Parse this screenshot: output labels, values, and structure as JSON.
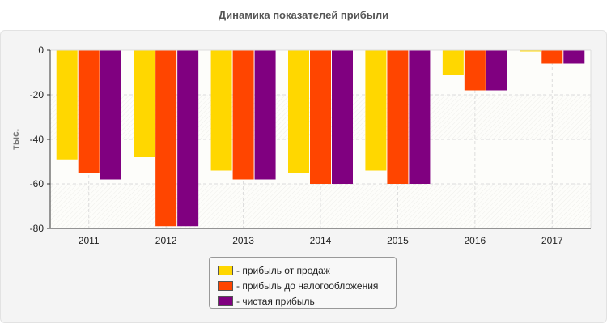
{
  "chart_data": {
    "type": "bar",
    "title": "Динамика показателей прибыли",
    "ylabel": "тыс.",
    "xlabel": "",
    "ylim": [
      -80,
      0
    ],
    "yticks": [
      0,
      -20,
      -40,
      -60,
      -80
    ],
    "grid": true,
    "legend_position": "bottom-center",
    "categories": [
      "2011",
      "2012",
      "2013",
      "2014",
      "2015",
      "2016",
      "2017"
    ],
    "series": [
      {
        "name": "- прибыль от продаж",
        "color": "#ffd700",
        "values": [
          -49,
          -48,
          -54,
          -55,
          -54,
          -11,
          -0.5
        ]
      },
      {
        "name": "- прибыль до налогообложения",
        "color": "#ff4500",
        "values": [
          -55,
          -79,
          -58,
          -60,
          -60,
          -18,
          -6
        ]
      },
      {
        "name": "- чистая прибыль",
        "color": "#800080",
        "values": [
          -58,
          -79,
          -58,
          -60,
          -60,
          -18,
          -6
        ]
      }
    ]
  }
}
